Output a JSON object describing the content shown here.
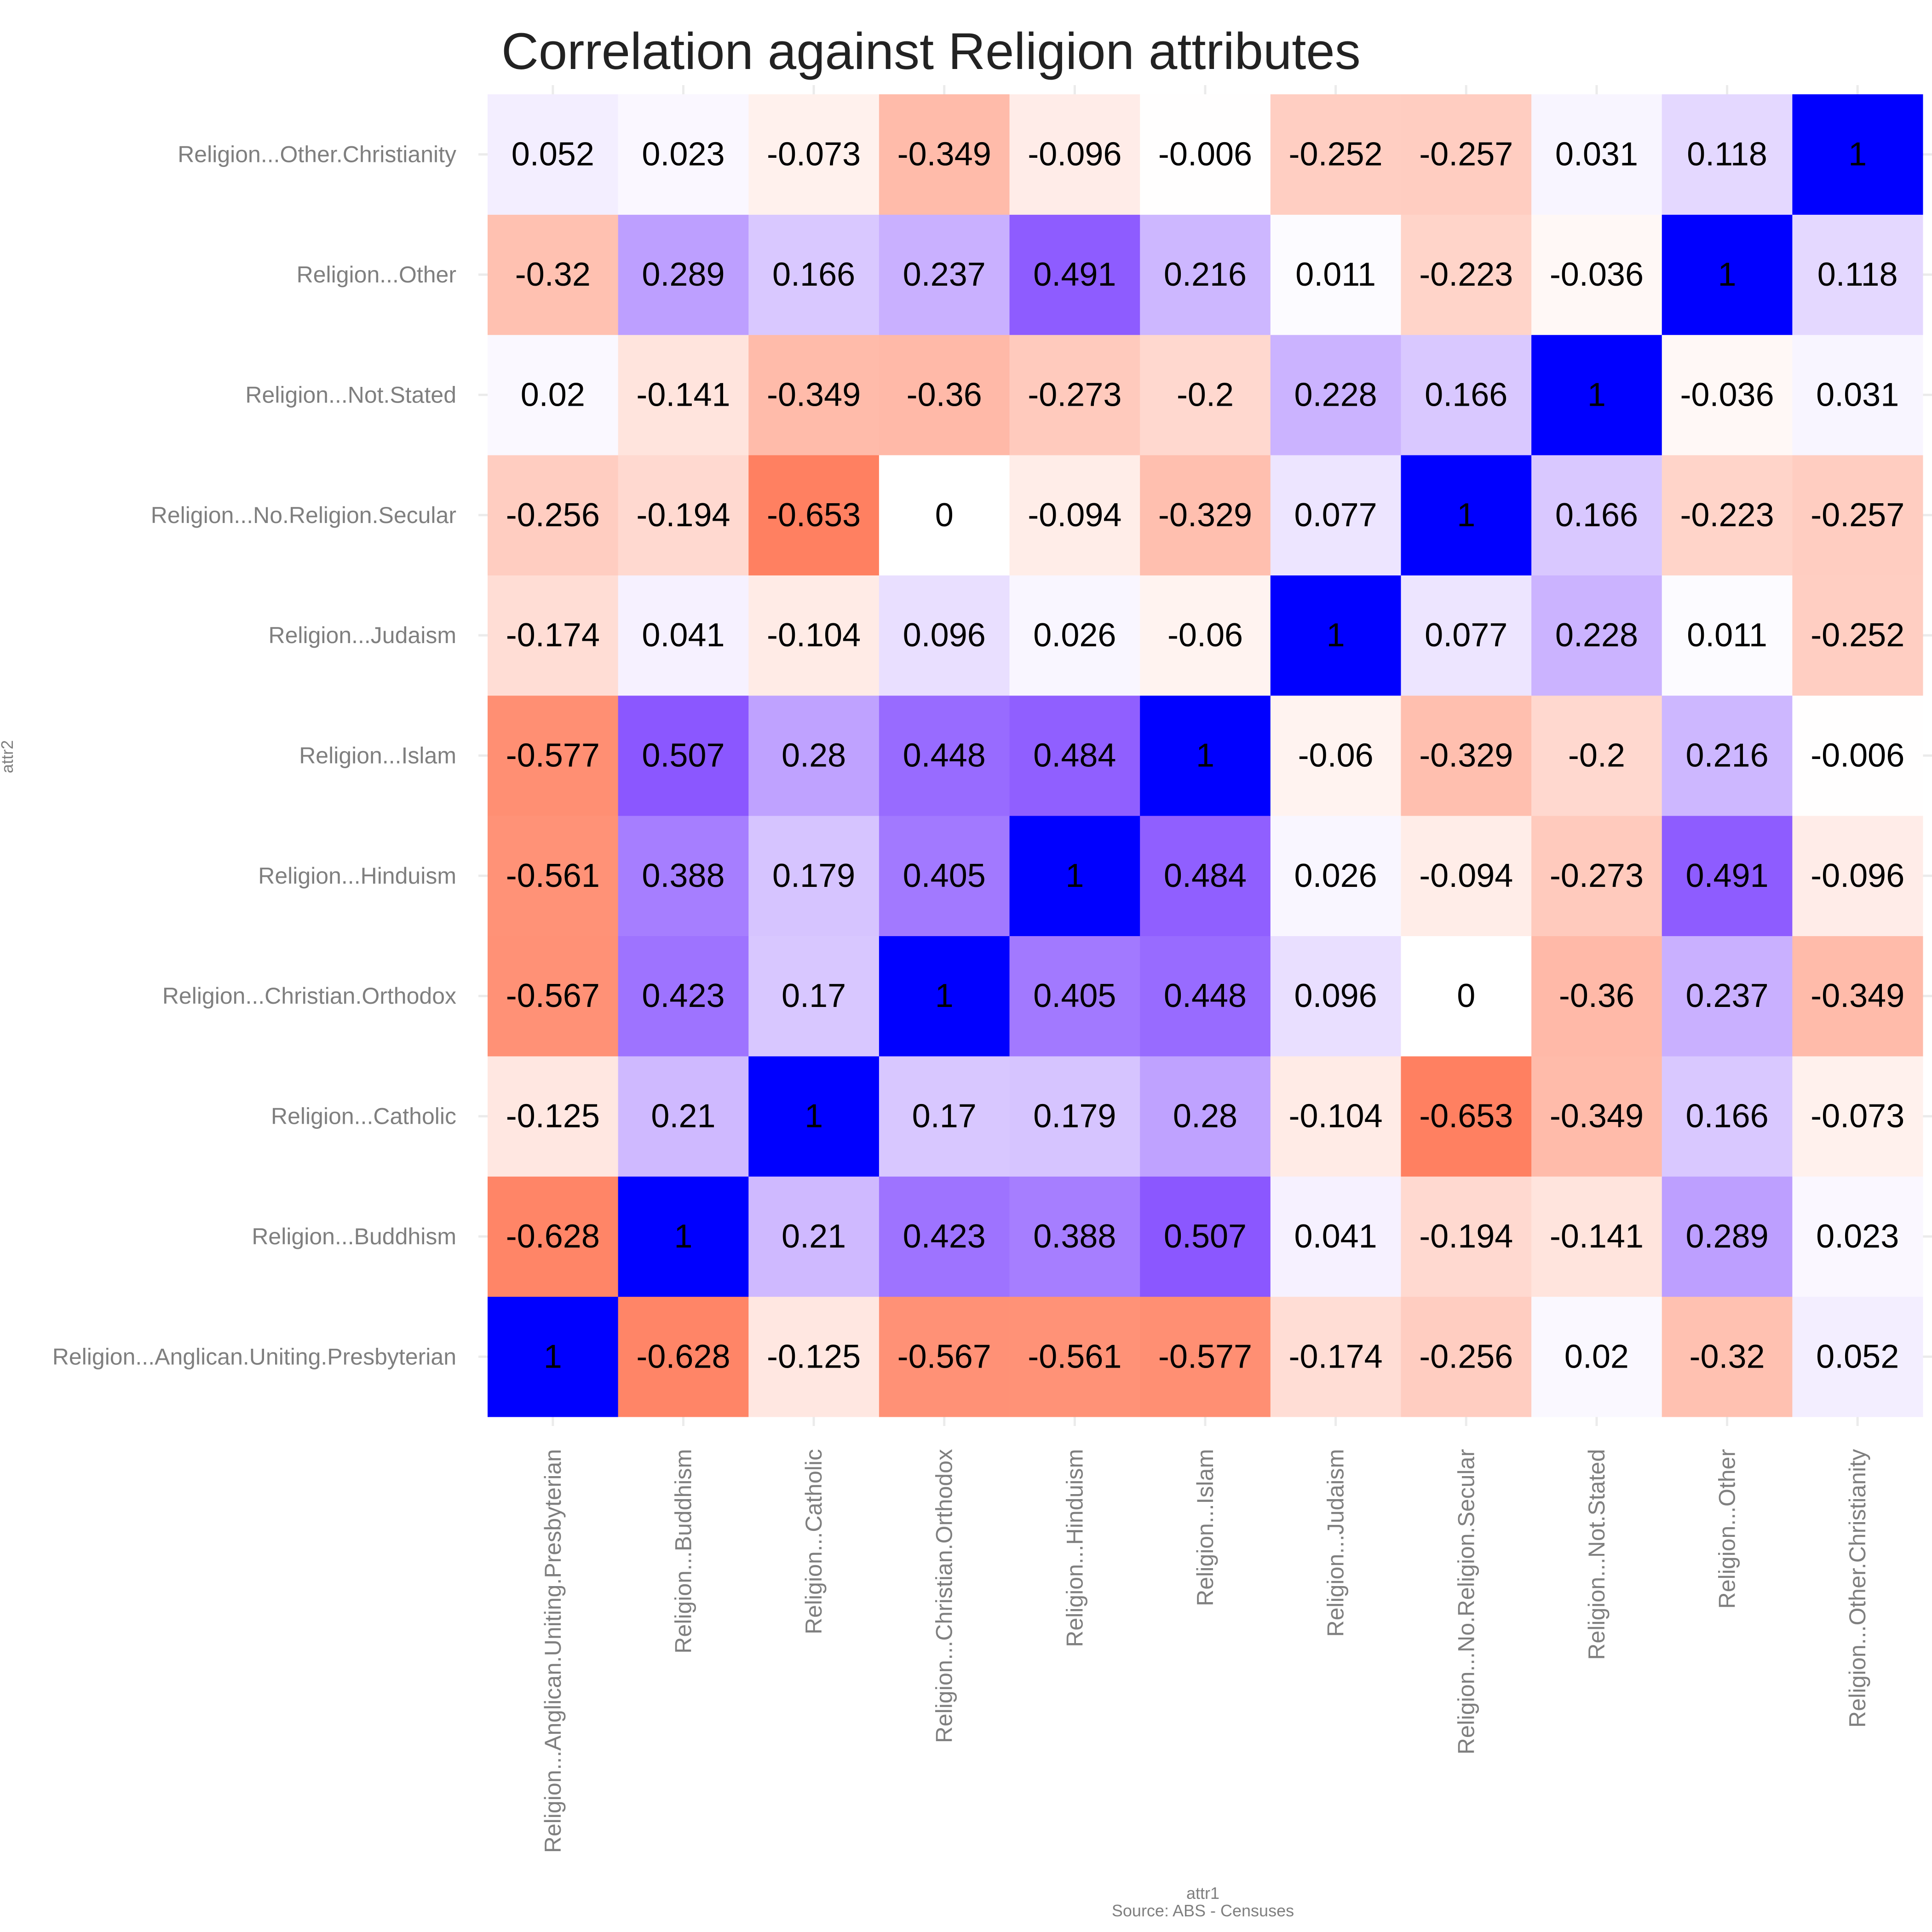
{
  "chart_data": {
    "type": "heatmap",
    "title": "Correlation against Religion attributes",
    "xlabel": "attr1",
    "ylabel": "attr2",
    "caption": "Source: ABS - Censuses",
    "x_categories": [
      "Religion...Anglican.Uniting.Presbyterian",
      "Religion...Buddhism",
      "Religion...Catholic",
      "Religion...Christian.Orthodox",
      "Religion...Hinduism",
      "Religion...Islam",
      "Religion...Judaism",
      "Religion...No.Religion.Secular",
      "Religion...Not.Stated",
      "Religion...Other",
      "Religion...Other.Christianity"
    ],
    "y_categories": [
      "Religion...Anglican.Uniting.Presbyterian",
      "Religion...Buddhism",
      "Religion...Catholic",
      "Religion...Christian.Orthodox",
      "Religion...Hinduism",
      "Religion...Islam",
      "Religion...Judaism",
      "Religion...No.Religion.Secular",
      "Religion...Not.Stated",
      "Religion...Other",
      "Religion...Other.Christianity"
    ],
    "values": [
      [
        1,
        -0.628,
        -0.125,
        -0.567,
        -0.561,
        -0.577,
        -0.174,
        -0.256,
        0.02,
        -0.32,
        0.052
      ],
      [
        -0.628,
        1,
        0.21,
        0.423,
        0.388,
        0.507,
        0.041,
        -0.194,
        -0.141,
        0.289,
        0.023
      ],
      [
        -0.125,
        0.21,
        1,
        0.17,
        0.179,
        0.28,
        -0.104,
        -0.653,
        -0.349,
        0.166,
        -0.073
      ],
      [
        -0.567,
        0.423,
        0.17,
        1,
        0.405,
        0.448,
        0.096,
        0,
        -0.36,
        0.237,
        -0.349
      ],
      [
        -0.561,
        0.388,
        0.179,
        0.405,
        1,
        0.484,
        0.026,
        -0.094,
        -0.273,
        0.491,
        -0.096
      ],
      [
        -0.577,
        0.507,
        0.28,
        0.448,
        0.484,
        1,
        -0.06,
        -0.329,
        -0.2,
        0.216,
        -0.006
      ],
      [
        -0.174,
        0.041,
        -0.104,
        0.096,
        0.026,
        -0.06,
        1,
        0.077,
        0.228,
        0.011,
        -0.252
      ],
      [
        -0.256,
        -0.194,
        -0.653,
        0,
        -0.094,
        -0.329,
        0.077,
        1,
        0.166,
        -0.223,
        -0.257
      ],
      [
        0.02,
        -0.141,
        -0.349,
        -0.36,
        -0.273,
        -0.2,
        0.228,
        0.166,
        1,
        -0.036,
        0.031
      ],
      [
        -0.32,
        0.289,
        0.166,
        0.237,
        0.491,
        0.216,
        0.011,
        -0.223,
        -0.036,
        1,
        0.118
      ],
      [
        0.052,
        0.023,
        -0.073,
        -0.349,
        -0.096,
        -0.006,
        -0.252,
        -0.257,
        0.031,
        0.118,
        1
      ]
    ],
    "color_scale": {
      "low": "#ff7f5f",
      "mid": "#ffffff",
      "high": "#8a56ff",
      "one": "#0000ff"
    },
    "grid": true,
    "legend": "none"
  }
}
